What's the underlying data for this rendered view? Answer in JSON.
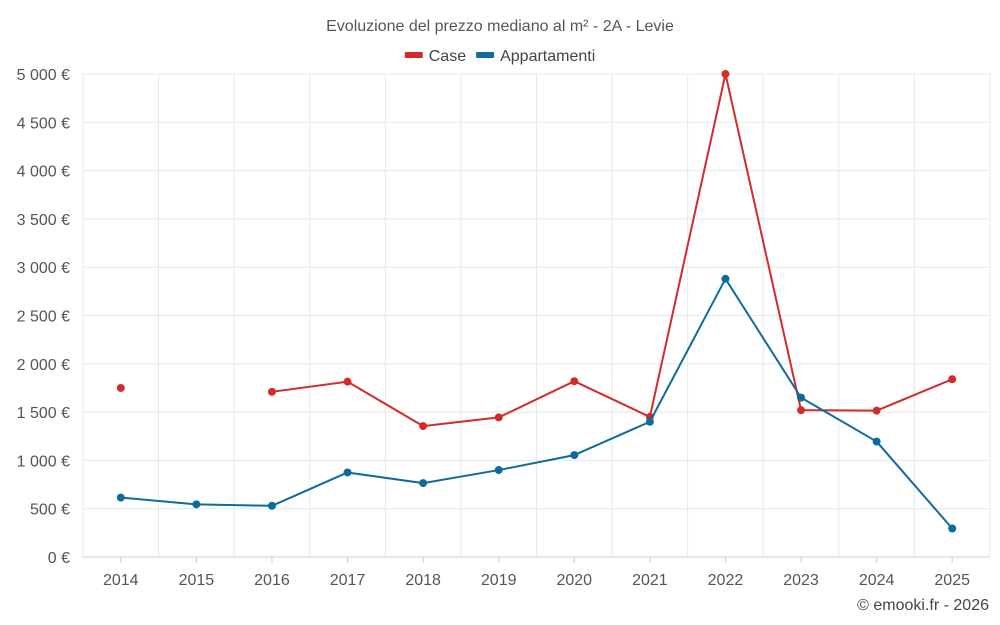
{
  "colors": {
    "case": "#d32b2b",
    "appartamenti": "#0f6aa0"
  },
  "credit": "© emooki.fr - 2026",
  "chart_data": {
    "type": "line",
    "title": "Evoluzione del prezzo mediano al m² - 2A - Levie",
    "categories": [
      "2014",
      "2015",
      "2016",
      "2017",
      "2018",
      "2019",
      "2020",
      "2021",
      "2022",
      "2023",
      "2024",
      "2025"
    ],
    "series": [
      {
        "name": "Case",
        "color": "#d32b2b",
        "values": [
          1750,
          null,
          1710,
          1815,
          1355,
          1445,
          1820,
          1450,
          5000,
          1520,
          1515,
          1840
        ]
      },
      {
        "name": "Appartamenti",
        "color": "#0f6aa0",
        "values": [
          615,
          545,
          530,
          875,
          765,
          900,
          1055,
          1400,
          2880,
          1650,
          1195,
          295
        ]
      }
    ],
    "ylim": [
      0,
      5000
    ],
    "yticks": [
      0,
      500,
      1000,
      1500,
      2000,
      2500,
      3000,
      3500,
      4000,
      4500,
      5000
    ],
    "ytick_labels": [
      "0 €",
      "500 €",
      "1 000 €",
      "1 500 €",
      "2 000 €",
      "2 500 €",
      "3 000 €",
      "3 500 €",
      "4 000 €",
      "4 500 €",
      "5 000 €"
    ],
    "xlabel": "",
    "ylabel": "",
    "legend": "top-center",
    "grid": true
  }
}
